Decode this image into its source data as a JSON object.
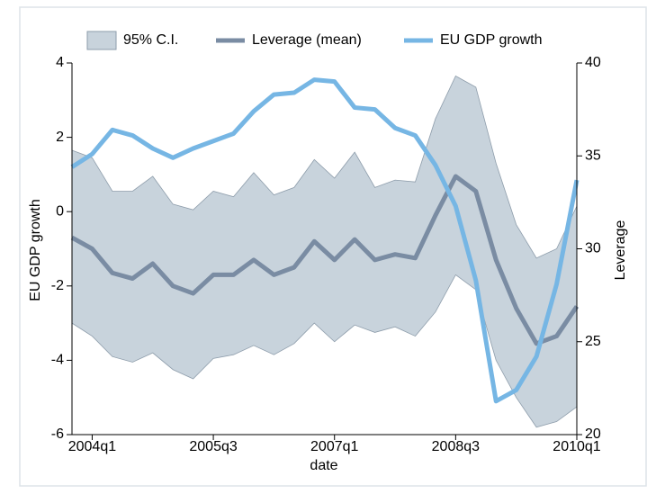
{
  "chart_data": {
    "type": "line",
    "x_label": "date",
    "y_label": "EU GDP growth",
    "y2_label": "Leverage",
    "legend": "top",
    "x": [
      "2003q4",
      "2004q1",
      "2004q2",
      "2004q3",
      "2004q4",
      "2005q1",
      "2005q2",
      "2005q3",
      "2005q4",
      "2006q1",
      "2006q2",
      "2006q3",
      "2006q4",
      "2007q1",
      "2007q2",
      "2007q3",
      "2007q4",
      "2008q1",
      "2008q2",
      "2008q3",
      "2008q4",
      "2009q1",
      "2009q2",
      "2009q3",
      "2009q4",
      "2010q1"
    ],
    "xticks": [
      "2004q1",
      "2005q3",
      "2007q1",
      "2008q3",
      "2010q1"
    ],
    "ylim": [
      -6,
      4
    ],
    "yticks": [
      -6,
      -4,
      -2,
      0,
      2,
      4
    ],
    "y2lim": [
      20,
      40
    ],
    "y2ticks": [
      20,
      25,
      30,
      35,
      40
    ],
    "series": [
      {
        "name": "95% C.I.",
        "type": "band",
        "axis": "y2",
        "color": "#c8d3dc",
        "upper": [
          35.3,
          34.9,
          33.1,
          33.1,
          33.9,
          32.4,
          32.1,
          33.1,
          32.8,
          34.1,
          32.9,
          33.3,
          34.8,
          33.8,
          35.2,
          33.3,
          33.7,
          33.6,
          37.0,
          39.3,
          38.7,
          34.6,
          31.3,
          29.5,
          30.0,
          32.3
        ],
        "lower": [
          26.0,
          25.3,
          24.2,
          23.9,
          24.4,
          23.5,
          23.0,
          24.1,
          24.3,
          24.8,
          24.3,
          24.9,
          26.0,
          25.0,
          25.9,
          25.5,
          25.8,
          25.3,
          26.6,
          28.6,
          27.8,
          24.0,
          22.0,
          20.4,
          20.7,
          21.5
        ]
      },
      {
        "name": "Leverage (mean)",
        "type": "line",
        "axis": "y2",
        "color": "#7a8ca3",
        "values": [
          30.6,
          30.0,
          28.7,
          28.4,
          29.2,
          28.0,
          27.6,
          28.6,
          28.6,
          29.4,
          28.6,
          29.0,
          30.4,
          29.4,
          30.5,
          29.4,
          29.7,
          29.5,
          31.8,
          33.9,
          33.1,
          29.4,
          26.8,
          24.9,
          25.3,
          26.9
        ]
      },
      {
        "name": "EU GDP growth",
        "type": "line",
        "axis": "y",
        "color": "#76b6e4",
        "values": [
          1.2,
          1.55,
          2.2,
          2.05,
          1.7,
          1.45,
          1.7,
          1.9,
          2.1,
          2.7,
          3.15,
          3.2,
          3.55,
          3.5,
          2.8,
          2.75,
          2.25,
          2.05,
          1.25,
          0.15,
          -1.85,
          -5.1,
          -4.8,
          -3.9,
          -1.95,
          0.85
        ]
      }
    ]
  }
}
